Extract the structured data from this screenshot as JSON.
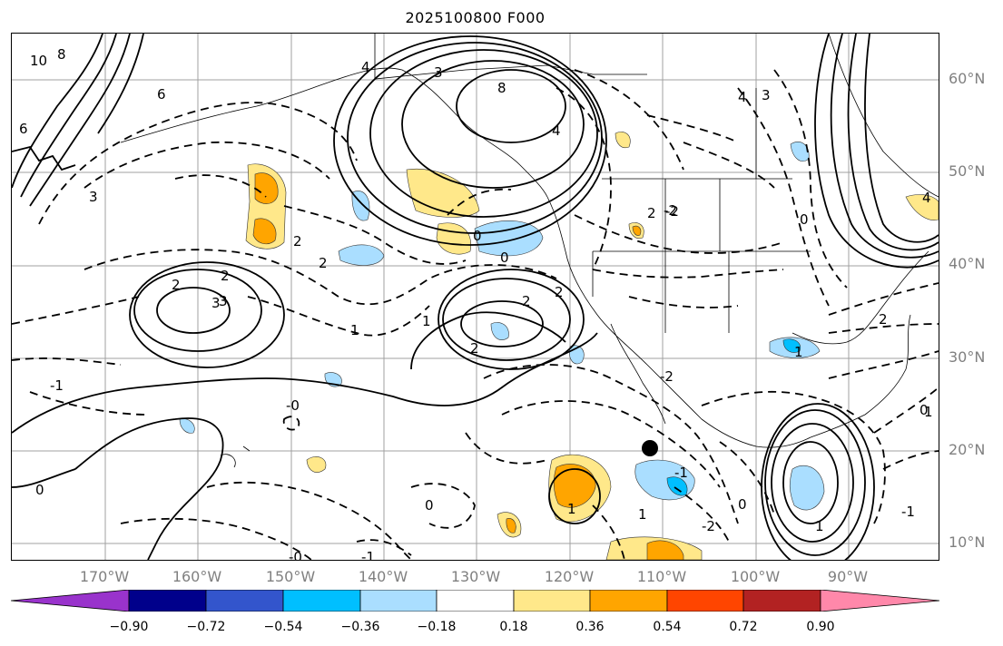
{
  "title": "2025100800 F000",
  "lat_labels": [
    "60°N",
    "50°N",
    "40°N",
    "30°N",
    "20°N",
    "10°N"
  ],
  "lon_labels": [
    "170°W",
    "160°W",
    "150°W",
    "140°W",
    "130°W",
    "120°W",
    "110°W",
    "100°W",
    "90°W"
  ],
  "colorbar": {
    "ticks": [
      "−0.90",
      "−0.72",
      "−0.54",
      "−0.36",
      "−0.18",
      "0.18",
      "0.36",
      "0.54",
      "0.72",
      "0.90"
    ],
    "colors": [
      "#9933cc",
      "#00008b",
      "#3355cc",
      "#00bfff",
      "#aadeff",
      "#ffffff",
      "#ffe88a",
      "#ffa500",
      "#ff4500",
      "#b22222",
      "#ff88aa"
    ]
  },
  "contour_labels": [
    "10",
    "8",
    "6",
    "6",
    "3",
    "4",
    "3",
    "8",
    "4",
    "4",
    "3",
    "2",
    "2",
    "2",
    "2",
    "3",
    "2",
    "1",
    "1",
    "2",
    "2",
    "0",
    "0",
    "-1",
    "-0",
    "-0",
    "0",
    "-1",
    "1",
    "2",
    "-2",
    "-2",
    "-2",
    "-2",
    "0",
    "0",
    "-1",
    "1",
    "1",
    "1",
    "1",
    "-1",
    "0",
    "0",
    "4",
    "2",
    "3"
  ]
}
